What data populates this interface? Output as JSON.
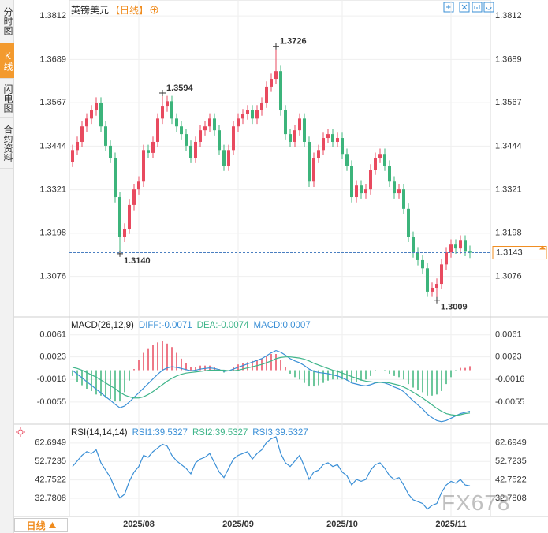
{
  "sidebar": {
    "tabs": [
      "分时图",
      "K线图",
      "闪电图",
      "合约资料"
    ]
  },
  "header": {
    "symbol": "英镑美元",
    "period": "【日线】"
  },
  "footer": {
    "period_button": "日线"
  },
  "watermark": "FX678",
  "chart_data": [
    {
      "type": "candlestick",
      "categories": [
        null,
        null,
        null,
        null,
        null,
        null,
        null,
        null,
        null,
        null,
        null,
        null,
        null,
        null,
        "2025/08",
        null,
        null,
        null,
        null,
        null,
        null,
        null,
        null,
        null,
        null,
        null,
        null,
        null,
        null,
        null,
        null,
        null,
        null,
        null,
        null,
        "2025/09",
        null,
        null,
        null,
        null,
        null,
        null,
        null,
        null,
        null,
        null,
        null,
        null,
        null,
        null,
        null,
        null,
        null,
        null,
        null,
        null,
        null,
        "2025/10",
        null,
        null,
        null,
        null,
        null,
        null,
        null,
        null,
        null,
        null,
        null,
        null,
        null,
        null,
        null,
        null,
        null,
        null,
        null,
        null,
        null,
        null,
        "2025/11",
        null,
        null,
        null,
        null
      ],
      "open": [
        1.34,
        1.3433,
        1.3456,
        1.35,
        1.3522,
        1.3545,
        1.3567,
        1.35,
        1.3445,
        1.3411,
        1.33,
        1.3188,
        1.3211,
        1.3278,
        1.3322,
        1.3344,
        1.3433,
        1.3425,
        1.3456,
        1.3522,
        1.3556,
        1.3571,
        1.3522,
        1.35,
        1.3478,
        1.3445,
        1.3411,
        1.3456,
        1.3489,
        1.35,
        1.3522,
        1.3489,
        1.3433,
        1.3389,
        1.3433,
        1.35,
        1.3522,
        1.3534,
        1.3545,
        1.3522,
        1.3545,
        1.3567,
        1.3612,
        1.3634,
        1.3656,
        1.3545,
        1.3478,
        1.3456,
        1.3489,
        1.3522,
        1.3456,
        1.3344,
        1.3411,
        1.3433,
        1.3467,
        1.3478,
        1.3456,
        1.3467,
        1.3422,
        1.3389,
        1.33,
        1.3333,
        1.3311,
        1.3322,
        1.3378,
        1.3411,
        1.3422,
        1.3389,
        1.3344,
        1.3311,
        1.3322,
        1.3267,
        1.3188,
        1.3144,
        1.3122,
        1.3099,
        1.3033,
        1.3044,
        1.3055,
        1.311,
        1.3144,
        1.3166,
        1.3155,
        1.3177,
        1.3148
      ],
      "high": [
        1.3448,
        1.3471,
        1.3515,
        1.3537,
        1.356,
        1.3582,
        1.3582,
        1.3515,
        1.346,
        1.3426,
        1.3315,
        1.3226,
        1.3293,
        1.3337,
        1.3359,
        1.3448,
        1.3448,
        1.3471,
        1.3537,
        1.3594,
        1.3586,
        1.3586,
        1.3537,
        1.3515,
        1.3493,
        1.346,
        1.3471,
        1.3504,
        1.3515,
        1.3537,
        1.3537,
        1.3504,
        1.3448,
        1.3448,
        1.3515,
        1.3537,
        1.3549,
        1.356,
        1.356,
        1.356,
        1.3582,
        1.3627,
        1.3649,
        1.3726,
        1.3671,
        1.356,
        1.3493,
        1.3504,
        1.3537,
        1.3537,
        1.3471,
        1.3426,
        1.3448,
        1.3482,
        1.3493,
        1.3493,
        1.3482,
        1.3482,
        1.3437,
        1.3404,
        1.3348,
        1.3348,
        1.3337,
        1.3393,
        1.3426,
        1.3437,
        1.3437,
        1.3404,
        1.3359,
        1.3337,
        1.3337,
        1.3282,
        1.3203,
        1.3159,
        1.3137,
        1.3114,
        1.3059,
        1.307,
        1.3125,
        1.3159,
        1.3181,
        1.3181,
        1.3192,
        1.3192,
        1.3163
      ],
      "low": [
        1.3385,
        1.3418,
        1.3441,
        1.3485,
        1.3507,
        1.353,
        1.3485,
        1.343,
        1.3396,
        1.3285,
        1.314,
        1.3173,
        1.3196,
        1.3263,
        1.3307,
        1.3329,
        1.341,
        1.341,
        1.3441,
        1.3507,
        1.3541,
        1.3507,
        1.3485,
        1.3463,
        1.343,
        1.3396,
        1.3396,
        1.3441,
        1.3474,
        1.3485,
        1.3474,
        1.3418,
        1.3374,
        1.3374,
        1.3418,
        1.3485,
        1.3507,
        1.3519,
        1.3507,
        1.3507,
        1.353,
        1.3552,
        1.3597,
        1.3619,
        1.353,
        1.3463,
        1.3441,
        1.3441,
        1.3474,
        1.3441,
        1.3329,
        1.3329,
        1.3396,
        1.3418,
        1.3452,
        1.3441,
        1.3441,
        1.3407,
        1.3374,
        1.3285,
        1.3285,
        1.3296,
        1.3296,
        1.3307,
        1.3363,
        1.3396,
        1.3374,
        1.3329,
        1.3296,
        1.3296,
        1.3252,
        1.3173,
        1.3129,
        1.3107,
        1.3084,
        1.3018,
        1.3018,
        1.3009,
        1.304,
        1.3095,
        1.3129,
        1.314,
        1.314,
        1.3133,
        1.3128
      ],
      "close": [
        1.3433,
        1.3456,
        1.35,
        1.3522,
        1.3545,
        1.3567,
        1.35,
        1.3445,
        1.3411,
        1.33,
        1.3188,
        1.3211,
        1.3278,
        1.3322,
        1.3344,
        1.3433,
        1.3425,
        1.3456,
        1.3522,
        1.3556,
        1.3571,
        1.3522,
        1.35,
        1.3478,
        1.3445,
        1.3411,
        1.3456,
        1.3489,
        1.35,
        1.3522,
        1.3489,
        1.3433,
        1.3389,
        1.3433,
        1.35,
        1.3522,
        1.3534,
        1.3545,
        1.3522,
        1.3545,
        1.3567,
        1.3612,
        1.3634,
        1.3656,
        1.3545,
        1.3478,
        1.3456,
        1.3489,
        1.3522,
        1.3456,
        1.3344,
        1.3411,
        1.3433,
        1.3467,
        1.3478,
        1.3456,
        1.3467,
        1.3422,
        1.3389,
        1.33,
        1.3333,
        1.3311,
        1.3322,
        1.3378,
        1.3411,
        1.3422,
        1.3389,
        1.3344,
        1.3311,
        1.3322,
        1.3267,
        1.3188,
        1.3144,
        1.3122,
        1.3099,
        1.3033,
        1.3044,
        1.3055,
        1.311,
        1.3144,
        1.3166,
        1.3155,
        1.3177,
        1.3148,
        1.3143
      ],
      "up_color": "#e84a5f",
      "down_color": "#3cb47b",
      "last_line_color": "#4a7fc1",
      "last_box_color": "#f08c1e",
      "annotations": [
        {
          "at": 43,
          "value": 1.3726,
          "label": "1.3726"
        },
        {
          "at": 19,
          "value": 1.3594,
          "label": "1.3594"
        },
        {
          "at": 10,
          "value": 1.314,
          "label": "1.3140"
        },
        {
          "at": 77,
          "value": 1.3009,
          "label": "1.3009"
        }
      ],
      "ylim": [
        1.2966,
        1.3839
      ],
      "yticks": [
        1.3812,
        1.3689,
        1.3567,
        1.3444,
        1.3321,
        1.3198,
        1.3076
      ],
      "grid": true
    },
    {
      "type": "macd",
      "title": "MACD(26,12,9)",
      "series": [
        {
          "name": "DIFF:-0.0071",
          "color": "#3a8fd6",
          "style": "line",
          "values": [
            0,
            -0.0007,
            -0.0013,
            -0.002,
            -0.0026,
            -0.0033,
            -0.0039,
            -0.0046,
            -0.0052,
            -0.0059,
            -0.0065,
            -0.0062,
            -0.0055,
            -0.0047,
            -0.0039,
            -0.0031,
            -0.0023,
            -0.0015,
            -0.0007,
            0,
            0.0004,
            0.0006,
            0.0005,
            0.0003,
            0.0001,
            -0.0001,
            0,
            0.0002,
            0.0003,
            0.0004,
            0.0003,
            0.0001,
            -0.0002,
            -0.0001,
            0.0002,
            0.0005,
            0.0008,
            0.0011,
            0.0014,
            0.0017,
            0.002,
            0.0025,
            0.003,
            0.0034,
            0.0031,
            0.0026,
            0.002,
            0.0016,
            0.0013,
            0.0008,
            0.0002,
            -0.0002,
            -0.0004,
            -0.0005,
            -0.0006,
            -0.0008,
            -0.001,
            -0.0013,
            -0.0017,
            -0.0022,
            -0.0024,
            -0.0026,
            -0.0027,
            -0.0025,
            -0.0022,
            -0.0021,
            -0.0022,
            -0.0025,
            -0.0029,
            -0.0032,
            -0.0037,
            -0.0045,
            -0.0053,
            -0.006,
            -0.0067,
            -0.0076,
            -0.0082,
            -0.0087,
            -0.0089,
            -0.0087,
            -0.0083,
            -0.0079,
            -0.0075,
            -0.0073,
            -0.0071
          ]
        },
        {
          "name": "DEA:-0.0074",
          "color": "#3fb58a",
          "style": "line",
          "values": [
            0.0005,
            0.0003,
            0,
            -0.0004,
            -0.0008,
            -0.0012,
            -0.0017,
            -0.0022,
            -0.0027,
            -0.0032,
            -0.0038,
            -0.0043,
            -0.0046,
            -0.0048,
            -0.0048,
            -0.0046,
            -0.0042,
            -0.0037,
            -0.0031,
            -0.0025,
            -0.0019,
            -0.0014,
            -0.001,
            -0.0007,
            -0.0005,
            -0.0004,
            -0.0003,
            -0.0002,
            -0.0001,
            0,
            0,
            0,
            0,
            -0.0001,
            -0.0001,
            0,
            0.0002,
            0.0004,
            0.0006,
            0.0008,
            0.001,
            0.0013,
            0.0016,
            0.002,
            0.0022,
            0.0023,
            0.0023,
            0.0022,
            0.0021,
            0.0019,
            0.0016,
            0.0012,
            0.0009,
            0.0006,
            0.0003,
            0,
            -0.0002,
            -0.0005,
            -0.0008,
            -0.0011,
            -0.0014,
            -0.0017,
            -0.0019,
            -0.002,
            -0.0021,
            -0.0021,
            -0.0021,
            -0.0022,
            -0.0024,
            -0.0026,
            -0.0029,
            -0.0033,
            -0.0038,
            -0.0043,
            -0.0048,
            -0.0054,
            -0.006,
            -0.0066,
            -0.0071,
            -0.0075,
            -0.0077,
            -0.0078,
            -0.0077,
            -0.0075,
            -0.0074
          ]
        },
        {
          "name": "MACD:0.0007",
          "color": "#e84a5f",
          "negative_color": "#3cb47b",
          "legend_color": "#3a8fd6",
          "style": "bar",
          "values": [
            -0.001,
            -0.002,
            -0.0026,
            -0.0032,
            -0.0036,
            -0.0042,
            -0.0044,
            -0.0048,
            -0.005,
            -0.0054,
            -0.0054,
            -0.0038,
            -0.0018,
            0.0002,
            0.0018,
            0.003,
            0.0038,
            0.0044,
            0.0048,
            0.005,
            0.0046,
            0.004,
            0.003,
            0.002,
            0.0012,
            0.0006,
            0.0006,
            0.0008,
            0.0008,
            0.0008,
            0.0006,
            0.0002,
            -0.0004,
            0,
            0.0006,
            0.001,
            0.0012,
            0.0014,
            0.0016,
            0.0018,
            0.002,
            0.0024,
            0.0028,
            0.0028,
            0.0018,
            0.0006,
            -0.0006,
            -0.0012,
            -0.0016,
            -0.0022,
            -0.0028,
            -0.0028,
            -0.0026,
            -0.0022,
            -0.0018,
            -0.0016,
            -0.0016,
            -0.0016,
            -0.0018,
            -0.0022,
            -0.002,
            -0.0018,
            -0.0016,
            -0.001,
            -0.0002,
            0,
            -0.0002,
            -0.0006,
            -0.001,
            -0.0012,
            -0.0016,
            -0.0024,
            -0.003,
            -0.0034,
            -0.0038,
            -0.0044,
            -0.0044,
            -0.0042,
            -0.0036,
            -0.0024,
            -0.0012,
            -0.0002,
            0.0004,
            0.0004,
            0.0007
          ]
        }
      ],
      "ylim": [
        -0.0092,
        0.0088
      ],
      "yticks": [
        0.0061,
        0.0023,
        -0.0016,
        -0.0055
      ]
    },
    {
      "type": "line",
      "title": "RSI(14,14,14)",
      "series": [
        {
          "name": "RSI1:39.5327",
          "color": "#3a8fd6",
          "values": [
            50,
            53,
            56,
            58,
            57,
            59,
            52,
            48,
            44,
            38,
            33,
            35,
            42,
            47,
            50,
            56,
            55,
            58,
            60,
            62,
            61,
            56,
            53,
            51,
            49,
            46,
            52,
            54,
            55,
            57,
            52,
            47,
            44,
            49,
            54,
            56,
            57,
            58,
            54,
            57,
            59,
            63,
            65,
            66,
            57,
            52,
            50,
            53,
            56,
            50,
            43,
            47,
            48,
            51,
            52,
            50,
            51,
            47,
            45,
            40,
            43,
            42,
            43,
            48,
            51,
            52,
            49,
            45,
            43,
            44,
            40,
            35,
            32,
            31,
            30,
            27,
            29,
            30,
            36,
            40,
            42,
            41,
            43,
            40,
            39.5327
          ]
        }
      ],
      "extra_legend": [
        {
          "name": "RSI2:39.5327",
          "color": "#3fb58a"
        },
        {
          "name": "RSI3:39.5327",
          "color": "#3a8fd6"
        }
      ],
      "ylim": [
        23,
        72
      ],
      "yticks": [
        62.6949,
        52.7235,
        42.7522,
        32.7808
      ]
    }
  ]
}
